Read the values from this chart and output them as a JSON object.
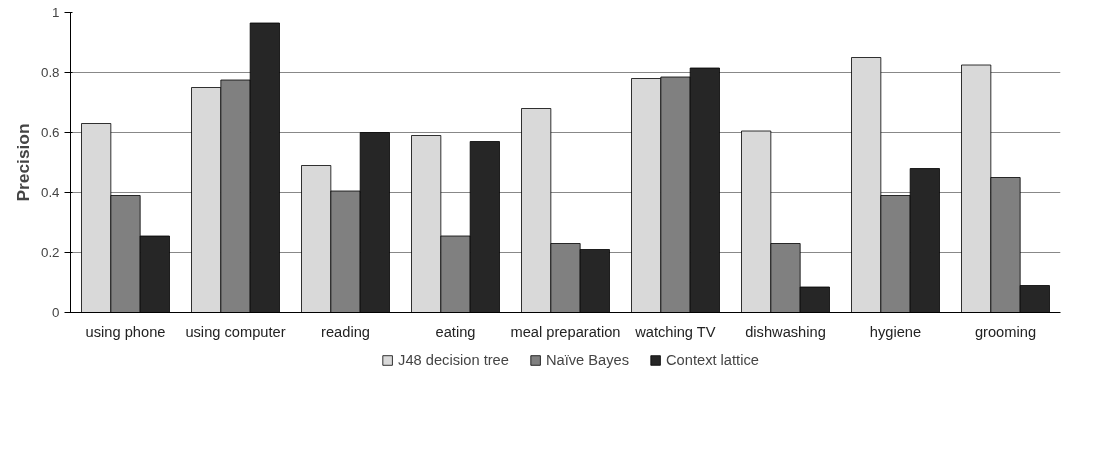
{
  "chart_data": {
    "type": "bar",
    "ylabel": "Precision",
    "categories": [
      "using phone",
      "using computer",
      "reading",
      "eating",
      "meal preparation",
      "watching TV",
      "dishwashing",
      "hygiene",
      "grooming"
    ],
    "series": [
      {
        "name": "J48 decision tree",
        "color": "#d9d9d9",
        "values": [
          0.63,
          0.75,
          0.49,
          0.59,
          0.68,
          0.78,
          0.605,
          0.85,
          0.825
        ]
      },
      {
        "name": "Naïve Bayes",
        "color": "#808080",
        "values": [
          0.39,
          0.775,
          0.405,
          0.255,
          0.23,
          0.785,
          0.23,
          0.39,
          0.45
        ]
      },
      {
        "name": "Context lattice",
        "color": "#262626",
        "values": [
          0.255,
          0.965,
          0.6,
          0.57,
          0.21,
          0.815,
          0.085,
          0.48,
          0.09
        ]
      }
    ],
    "ylim": [
      0,
      1
    ],
    "yticks": [
      0,
      0.2,
      0.4,
      0.6,
      0.8,
      1
    ],
    "grid": "y",
    "legend": "bottom"
  }
}
